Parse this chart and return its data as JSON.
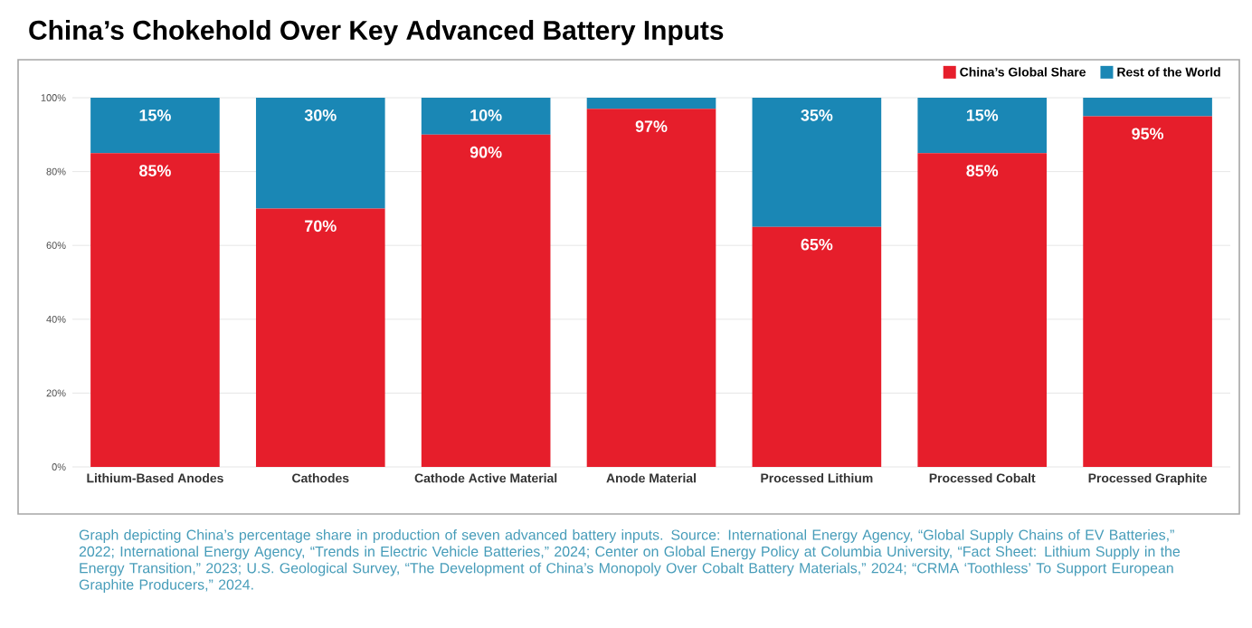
{
  "chart_data": {
    "type": "bar",
    "stacked": true,
    "title": "China’s Chokehold Over Key Advanced Battery Inputs",
    "categories": [
      "Lithium-Based Anodes",
      "Cathodes",
      "Cathode Active Material",
      "Anode Material",
      "Processed Lithium",
      "Processed Cobalt",
      "Processed Graphite"
    ],
    "series": [
      {
        "name": "China’s Global Share",
        "color": "#e61e2b",
        "values": [
          85,
          70,
          90,
          97,
          65,
          85,
          95
        ],
        "value_labels": [
          "85%",
          "70%",
          "90%",
          "97%",
          "65%",
          "85%",
          "95%"
        ]
      },
      {
        "name": "Rest of the World",
        "color": "#1a87b5",
        "values": [
          15,
          30,
          10,
          3,
          35,
          15,
          5
        ],
        "value_labels": [
          "15%",
          "30%",
          "10%",
          null,
          "35%",
          "15%",
          null
        ]
      }
    ],
    "ylim": [
      0,
      100
    ],
    "yticks": [
      {
        "value": 0,
        "label": "0%"
      },
      {
        "value": 20,
        "label": "20%"
      },
      {
        "value": 40,
        "label": "40%"
      },
      {
        "value": 60,
        "label": "60%"
      },
      {
        "value": 80,
        "label": "80%"
      },
      {
        "value": 100,
        "label": "100%"
      }
    ],
    "grid": "y",
    "legend": "top right",
    "annotations": [
      "Graph depicting China’s percentage share in production of seven advanced battery inputs. Source: International Energy Agency, “Global Supply Chains of EV Batteries,” 2022; International Energy Agency, “Trends in Electric Vehicle Batteries,” 2024; Center on Global Energy Policy at Columbia University, “Fact Sheet: Lithium Supply in the Energy Transition,” 2023; U.S. Geological Survey, “The Development of China’s Monopoly Over Cobalt Battery Materials,” 2024; “CRMA ‘Toothless’ To Support European Graphite Producers,” 2024."
    ]
  }
}
